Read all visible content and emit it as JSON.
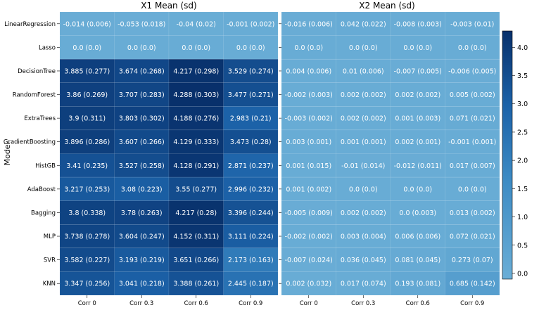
{
  "figure": {
    "ylabel": "Model"
  },
  "colorbar": {
    "ticks": [
      0.0,
      0.5,
      1.0,
      1.5,
      2.0,
      2.5,
      3.0,
      3.5,
      4.0
    ],
    "tick_labels": [
      "0.0",
      "0.5",
      "1.0",
      "1.5",
      "2.0",
      "2.5",
      "3.0",
      "3.5",
      "4.0"
    ],
    "vmin": -0.1,
    "vmax": 4.29,
    "color_low": "#6baed6",
    "color_high": "#08306b"
  },
  "chart_data": [
    {
      "type": "heatmap",
      "title": "X1 Mean (sd)",
      "xlabel": "",
      "ylabel": "Model",
      "x": [
        "Corr 0",
        "Corr 0.3",
        "Corr 0.6",
        "Corr 0.9"
      ],
      "y": [
        "LinearRegression",
        "Lasso",
        "DecisionTree",
        "RandomForest",
        "ExtraTrees",
        "GradientBoosting",
        "HistGB",
        "AdaBoost",
        "Bagging",
        "MLP",
        "SVR",
        "KNN"
      ],
      "values": [
        [
          -0.014,
          -0.053,
          -0.04,
          -0.001
        ],
        [
          0.0,
          0.0,
          0.0,
          0.0
        ],
        [
          3.885,
          3.674,
          4.217,
          3.529
        ],
        [
          3.86,
          3.707,
          4.288,
          3.477
        ],
        [
          3.9,
          3.803,
          4.188,
          2.983
        ],
        [
          3.896,
          3.607,
          4.129,
          3.473
        ],
        [
          3.41,
          3.527,
          4.128,
          2.871
        ],
        [
          3.217,
          3.08,
          3.55,
          2.996
        ],
        [
          3.8,
          3.78,
          4.217,
          3.396
        ],
        [
          3.738,
          3.604,
          4.152,
          3.111
        ],
        [
          3.582,
          3.193,
          3.651,
          2.173
        ],
        [
          3.347,
          3.041,
          3.388,
          2.445
        ]
      ],
      "labels": [
        [
          "-0.014 (0.006)",
          "-0.053 (0.018)",
          "-0.04 (0.02)",
          "-0.001 (0.002)"
        ],
        [
          "0.0 (0.0)",
          "0.0 (0.0)",
          "0.0 (0.0)",
          "0.0 (0.0)"
        ],
        [
          "3.885 (0.277)",
          "3.674 (0.268)",
          "4.217 (0.298)",
          "3.529 (0.274)"
        ],
        [
          "3.86 (0.269)",
          "3.707 (0.283)",
          "4.288 (0.303)",
          "3.477 (0.271)"
        ],
        [
          "3.9 (0.311)",
          "3.803 (0.302)",
          "4.188 (0.276)",
          "2.983 (0.21)"
        ],
        [
          "3.896 (0.286)",
          "3.607 (0.266)",
          "4.129 (0.333)",
          "3.473 (0.28)"
        ],
        [
          "3.41 (0.235)",
          "3.527 (0.258)",
          "4.128 (0.291)",
          "2.871 (0.237)"
        ],
        [
          "3.217 (0.253)",
          "3.08 (0.223)",
          "3.55 (0.277)",
          "2.996 (0.232)"
        ],
        [
          "3.8 (0.338)",
          "3.78 (0.263)",
          "4.217 (0.28)",
          "3.396 (0.244)"
        ],
        [
          "3.738 (0.278)",
          "3.604 (0.247)",
          "4.152 (0.311)",
          "3.111 (0.224)"
        ],
        [
          "3.582 (0.227)",
          "3.193 (0.219)",
          "3.651 (0.266)",
          "2.173 (0.163)"
        ],
        [
          "3.347 (0.256)",
          "3.041 (0.218)",
          "3.388 (0.261)",
          "2.445 (0.187)"
        ]
      ]
    },
    {
      "type": "heatmap",
      "title": "X2 Mean (sd)",
      "xlabel": "",
      "ylabel": "",
      "x": [
        "Corr 0",
        "Corr 0.3",
        "Corr 0.6",
        "Corr 0.9"
      ],
      "y": [
        "LinearRegression",
        "Lasso",
        "DecisionTree",
        "RandomForest",
        "ExtraTrees",
        "GradientBoosting",
        "HistGB",
        "AdaBoost",
        "Bagging",
        "MLP",
        "SVR",
        "KNN"
      ],
      "values": [
        [
          -0.016,
          0.042,
          -0.008,
          -0.003
        ],
        [
          0.0,
          0.0,
          0.0,
          0.0
        ],
        [
          0.004,
          0.01,
          -0.007,
          -0.006
        ],
        [
          -0.002,
          0.002,
          0.002,
          0.005
        ],
        [
          -0.003,
          0.002,
          0.001,
          0.071
        ],
        [
          0.003,
          0.001,
          0.002,
          -0.001
        ],
        [
          0.001,
          -0.01,
          -0.012,
          0.017
        ],
        [
          0.001,
          0.0,
          0.0,
          0.0
        ],
        [
          -0.005,
          0.002,
          0.0,
          0.013
        ],
        [
          -0.002,
          0.003,
          0.006,
          0.072
        ],
        [
          -0.007,
          0.036,
          0.081,
          0.273
        ],
        [
          0.002,
          0.017,
          0.193,
          0.685
        ]
      ],
      "labels": [
        [
          "-0.016 (0.006)",
          "0.042 (0.022)",
          "-0.008 (0.003)",
          "-0.003 (0.01)"
        ],
        [
          "0.0 (0.0)",
          "0.0 (0.0)",
          "0.0 (0.0)",
          "0.0 (0.0)"
        ],
        [
          "0.004 (0.006)",
          "0.01 (0.006)",
          "-0.007 (0.005)",
          "-0.006 (0.005)"
        ],
        [
          "-0.002 (0.003)",
          "0.002 (0.002)",
          "0.002 (0.002)",
          "0.005 (0.002)"
        ],
        [
          "-0.003 (0.002)",
          "0.002 (0.002)",
          "0.001 (0.003)",
          "0.071 (0.021)"
        ],
        [
          "0.003 (0.001)",
          "0.001 (0.001)",
          "0.002 (0.001)",
          "-0.001 (0.001)"
        ],
        [
          "0.001 (0.015)",
          "-0.01 (0.014)",
          "-0.012 (0.011)",
          "0.017 (0.007)"
        ],
        [
          "0.001 (0.002)",
          "0.0 (0.0)",
          "0.0 (0.0)",
          "0.0 (0.0)"
        ],
        [
          "-0.005 (0.009)",
          "0.002 (0.002)",
          "0.0 (0.003)",
          "0.013 (0.002)"
        ],
        [
          "-0.002 (0.002)",
          "0.003 (0.004)",
          "0.006 (0.006)",
          "0.072 (0.021)"
        ],
        [
          "-0.007 (0.024)",
          "0.036 (0.045)",
          "0.081 (0.045)",
          "0.273 (0.07)"
        ],
        [
          "0.002 (0.032)",
          "0.017 (0.074)",
          "0.193 (0.081)",
          "0.685 (0.142)"
        ]
      ]
    }
  ]
}
